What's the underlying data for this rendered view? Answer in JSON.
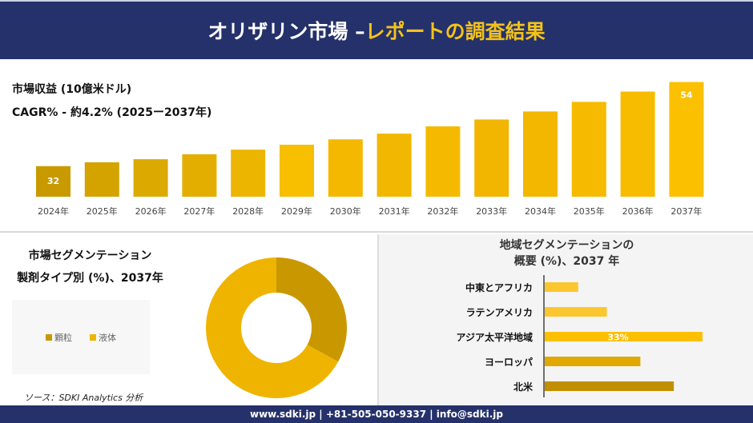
{
  "header": {
    "title_main": "オリザリン市場 –",
    "title_highlight": "レポートの調査結果"
  },
  "revenue": {
    "label": "市場収益 (10億米ドル)",
    "cagr": "CAGR% - 約4.2% (2025ー2037年)"
  },
  "chart_data": [
    {
      "type": "bar",
      "categories": [
        "2024年",
        "2025年",
        "2026年",
        "2027年",
        "2028年",
        "2029年",
        "2030年",
        "2031年",
        "2032年",
        "2033年",
        "2034年",
        "2035年",
        "2036年",
        "2037年"
      ],
      "values": [
        32,
        33,
        33.8,
        35.1,
        36.3,
        37.6,
        39,
        40.5,
        42.4,
        44.2,
        46.3,
        48.8,
        51.5,
        54
      ],
      "data_labels": {
        "2024年": "32",
        "2037年": "54"
      },
      "ylim": [
        24,
        56
      ],
      "grid": false,
      "colors": [
        "#c89a00",
        "#d4a300",
        "#dba900",
        "#e3ae00",
        "#ecb500",
        "#f8be00",
        "#f4b800",
        "#f2b700",
        "#f5ba00",
        "#f2b500",
        "#f3b700",
        "#f6ba00",
        "#f7bc00",
        "#fbc000"
      ]
    },
    {
      "type": "pie",
      "title": "市場セグメンテーション 製剤タイプ別 (%)、2037年",
      "categories": [
        "顆粒",
        "液体"
      ],
      "values": [
        33,
        67
      ],
      "colors": [
        "#c99800",
        "#efb400"
      ],
      "legend": "left"
    },
    {
      "type": "bar",
      "orientation": "horizontal",
      "title": "地域セグメンテーションの 概要 (%)、2037 年",
      "categories": [
        "中東とアフリカ",
        "ラテンアメリカ",
        "アジア太平洋地域",
        "ヨーロッパ",
        "北米"
      ],
      "values": [
        7,
        13,
        33,
        20,
        27
      ],
      "data_labels": {
        "アジア太平洋地域": "33%"
      },
      "colors": [
        "#fcc72e",
        "#fcc72e",
        "#fdc000",
        "#e0a800",
        "#c28f00"
      ]
    }
  ],
  "segment": {
    "title1": "市場セグメンテーション",
    "title2": "製剤タイプ別 (%)、2037年",
    "source": "ソース：SDKI Analytics 分析"
  },
  "region": {
    "title1": "地域セグメンテーションの",
    "title2": "概要 (%)、2037 年"
  },
  "footer": {
    "contact": "www.sdki.jp | +81-505-050-9337 | info@sdki.jp"
  }
}
